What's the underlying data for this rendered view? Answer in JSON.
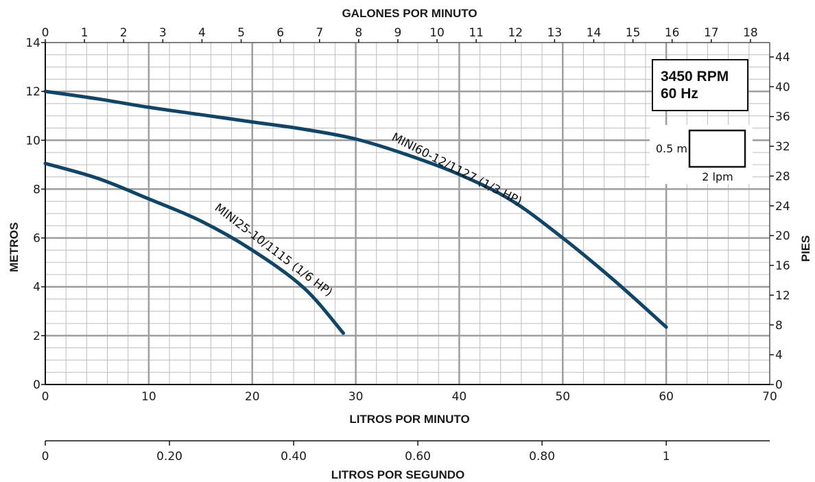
{
  "chart_data": {
    "type": "line",
    "title": "",
    "info_box": [
      "3450 RPM",
      "60 Hz"
    ],
    "scale_box": {
      "head_label": "0.5 m",
      "flow_label": "2 lpm"
    },
    "axes": {
      "bottom": {
        "label": "LITROS POR MINUTO",
        "range": [
          0,
          70
        ],
        "ticks": [
          0,
          10,
          20,
          30,
          40,
          50,
          60,
          70
        ]
      },
      "top": {
        "label": "GALONES POR MINUTO",
        "ticks": [
          "0",
          "1",
          "2",
          "3",
          "4",
          "5",
          "6",
          "7",
          "8",
          "9",
          "10",
          "11",
          "12",
          "13",
          "14",
          "15",
          "16",
          "17",
          "18"
        ]
      },
      "left": {
        "label": "METROS",
        "range": [
          0,
          14
        ],
        "ticks": [
          0,
          2,
          4,
          6,
          8,
          10,
          12,
          14
        ]
      },
      "right": {
        "label": "PIES",
        "ticks": [
          "0",
          "4",
          "8",
          "12",
          "16",
          "20",
          "24",
          "28",
          "32",
          "36",
          "40",
          "44"
        ]
      },
      "secondary_bottom": {
        "label": "LITROS POR SEGUNDO",
        "ticks": [
          "0",
          "0.20",
          "0.40",
          "0.60",
          "0.80",
          "1"
        ],
        "values": [
          0,
          0.2,
          0.4,
          0.6,
          0.8,
          1.0
        ]
      }
    },
    "grid": true,
    "line_color": "#0f4569",
    "series": [
      {
        "name": "MINI60-12/1127 (1/3 HP)",
        "points": [
          [
            0,
            12.0
          ],
          [
            5,
            11.7
          ],
          [
            10,
            11.35
          ],
          [
            15,
            11.05
          ],
          [
            20,
            10.75
          ],
          [
            25,
            10.45
          ],
          [
            30,
            10.05
          ],
          [
            35,
            9.4
          ],
          [
            40,
            8.6
          ],
          [
            45,
            7.55
          ],
          [
            50,
            6.0
          ],
          [
            55,
            4.25
          ],
          [
            60,
            2.35
          ]
        ]
      },
      {
        "name": "MINI25-10/1115 (1/6 HP)",
        "points": [
          [
            0,
            9.05
          ],
          [
            5,
            8.45
          ],
          [
            10,
            7.6
          ],
          [
            15,
            6.7
          ],
          [
            20,
            5.5
          ],
          [
            25,
            3.95
          ],
          [
            28.8,
            2.1
          ]
        ]
      }
    ]
  }
}
